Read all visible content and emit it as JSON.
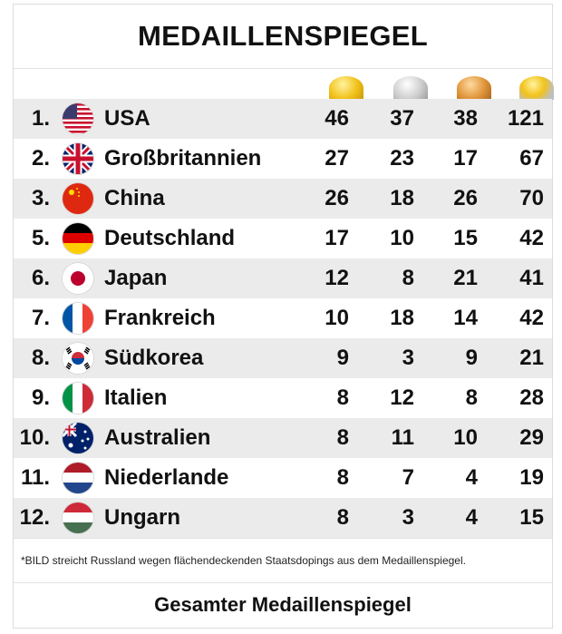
{
  "title": "MEDAILLENSPIEGEL",
  "medal_columns": [
    "gold",
    "silver",
    "bronze",
    "total"
  ],
  "rows": [
    {
      "rank": "1.",
      "country": "USA",
      "flag": "usa-flag-icon",
      "gold": "46",
      "silver": "37",
      "bronze": "38",
      "total": "121"
    },
    {
      "rank": "2.",
      "country": "Großbritannien",
      "flag": "uk-flag-icon",
      "gold": "27",
      "silver": "23",
      "bronze": "17",
      "total": "67"
    },
    {
      "rank": "3.",
      "country": "China",
      "flag": "china-flag-icon",
      "gold": "26",
      "silver": "18",
      "bronze": "26",
      "total": "70"
    },
    {
      "rank": "5.",
      "country": "Deutschland",
      "flag": "germany-flag-icon",
      "gold": "17",
      "silver": "10",
      "bronze": "15",
      "total": "42"
    },
    {
      "rank": "6.",
      "country": "Japan",
      "flag": "japan-flag-icon",
      "gold": "12",
      "silver": "8",
      "bronze": "21",
      "total": "41"
    },
    {
      "rank": "7.",
      "country": "Frankreich",
      "flag": "france-flag-icon",
      "gold": "10",
      "silver": "18",
      "bronze": "14",
      "total": "42"
    },
    {
      "rank": "8.",
      "country": "Südkorea",
      "flag": "south-korea-flag-icon",
      "gold": "9",
      "silver": "3",
      "bronze": "9",
      "total": "21"
    },
    {
      "rank": "9.",
      "country": "Italien",
      "flag": "italy-flag-icon",
      "gold": "8",
      "silver": "12",
      "bronze": "8",
      "total": "28"
    },
    {
      "rank": "10.",
      "country": "Australien",
      "flag": "australia-flag-icon",
      "gold": "8",
      "silver": "11",
      "bronze": "10",
      "total": "29"
    },
    {
      "rank": "11.",
      "country": "Niederlande",
      "flag": "netherlands-flag-icon",
      "gold": "8",
      "silver": "7",
      "bronze": "4",
      "total": "19"
    },
    {
      "rank": "12.",
      "country": "Ungarn",
      "flag": "hungary-flag-icon",
      "gold": "8",
      "silver": "3",
      "bronze": "4",
      "total": "15"
    }
  ],
  "footnote": "*BILD streicht Russland wegen flächendeckenden Staatsdopings aus dem Medaillenspiegel.",
  "footer_link": "Gesamter Medaillenspiegel"
}
